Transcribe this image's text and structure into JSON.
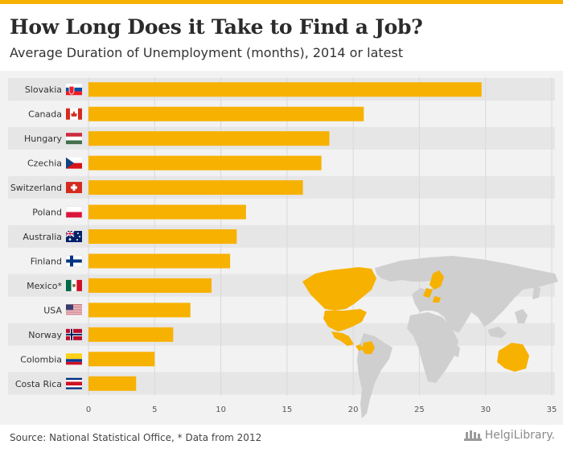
{
  "header": {
    "title": "How Long Does it Take to Find a Job?",
    "subtitle": "Average Duration of Unemployment (months), 2014 or latest"
  },
  "footer": {
    "source": "Source: National Statistical Office, * Data from 2012",
    "brand": "HelgiLibrary."
  },
  "colors": {
    "bar": "#f7b100",
    "accent": "#f7b100",
    "plot_bg": "#f2f2f2",
    "row_alt": "#e6e6e6",
    "map_land": "#cfcfcf",
    "map_highlight": "#f7b100"
  },
  "chart_data": {
    "type": "bar",
    "orientation": "horizontal",
    "title": "How Long Does it Take to Find a Job?",
    "subtitle": "Average Duration of Unemployment (months), 2014 or latest",
    "xlabel": "",
    "ylabel": "",
    "xlim": [
      0,
      35
    ],
    "xticks": [
      0,
      5,
      10,
      15,
      20,
      25,
      30,
      35
    ],
    "categories": [
      "Slovakia",
      "Canada",
      "Hungary",
      "Czechia",
      "Switzerland",
      "Poland",
      "Australia",
      "Finland",
      "Mexico*",
      "USA",
      "Norway",
      "Colombia",
      "Costa Rica"
    ],
    "values": [
      29.7,
      20.8,
      18.2,
      17.6,
      16.2,
      11.9,
      11.2,
      10.7,
      9.3,
      7.7,
      6.4,
      5.0,
      3.6
    ],
    "flag_icons": [
      "slovakia-flag-icon",
      "canada-flag-icon",
      "hungary-flag-icon",
      "czechia-flag-icon",
      "switzerland-flag-icon",
      "poland-flag-icon",
      "australia-flag-icon",
      "finland-flag-icon",
      "mexico-flag-icon",
      "usa-flag-icon",
      "norway-flag-icon",
      "colombia-flag-icon",
      "costa-rica-flag-icon"
    ],
    "grid": true,
    "legend": "none"
  }
}
